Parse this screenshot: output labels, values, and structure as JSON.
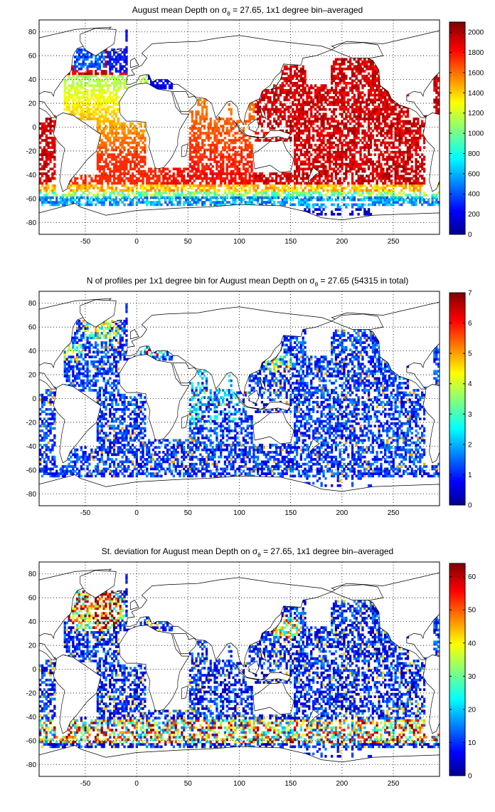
{
  "chart_data": [
    {
      "type": "heatmap",
      "title_before_symbol": "August mean Depth on ",
      "title_symbol": "σ",
      "title_subscript": "θ",
      "title_after_symbol": " = 27.65, 1x1 degree bin–averaged",
      "xlabel": "",
      "ylabel": "",
      "xlim": [
        -95,
        295
      ],
      "ylim": [
        -90,
        90
      ],
      "x_ticks": [
        "-50",
        "0",
        "50",
        "100",
        "150",
        "200",
        "250"
      ],
      "y_ticks": [
        "80",
        "60",
        "40",
        "20",
        "0",
        "-20",
        "-40",
        "-60",
        "-80"
      ],
      "grid": true,
      "colormap": "jet",
      "colorbar_range": [
        0,
        2100
      ],
      "colorbar_ticks": [
        "2000",
        "1800",
        "1600",
        "1400",
        "1200",
        "1000",
        "800",
        "600",
        "400",
        "200",
        "0"
      ],
      "pattern": "depth"
    },
    {
      "type": "heatmap",
      "title_before_symbol": "N of profiles per 1x1 degree bin for August mean Depth on ",
      "title_symbol": "σ",
      "title_subscript": "θ",
      "title_after_symbol": " = 27.65 (54315 in total)",
      "xlabel": "",
      "ylabel": "",
      "xlim": [
        -95,
        295
      ],
      "ylim": [
        -90,
        90
      ],
      "x_ticks": [
        "-50",
        "0",
        "50",
        "100",
        "150",
        "200",
        "250"
      ],
      "y_ticks": [
        "80",
        "60",
        "40",
        "20",
        "0",
        "-20",
        "-40",
        "-60",
        "-80"
      ],
      "grid": true,
      "colormap": "jet",
      "colorbar_range": [
        0,
        7
      ],
      "colorbar_ticks": [
        "7",
        "6",
        "5",
        "4",
        "3",
        "2",
        "1",
        "0"
      ],
      "pattern": "count"
    },
    {
      "type": "heatmap",
      "title_before_symbol": "St. deviation for August mean Depth on ",
      "title_symbol": "σ",
      "title_subscript": "θ",
      "title_after_symbol": " = 27.65, 1x1 degree bin–averaged",
      "xlabel": "",
      "ylabel": "",
      "xlim": [
        -95,
        295
      ],
      "ylim": [
        -90,
        90
      ],
      "x_ticks": [
        "-50",
        "0",
        "50",
        "100",
        "150",
        "200",
        "250"
      ],
      "y_ticks": [
        "80",
        "60",
        "40",
        "20",
        "0",
        "-20",
        "-40",
        "-60",
        "-80"
      ],
      "grid": true,
      "colormap": "jet",
      "colorbar_range": [
        0,
        64
      ],
      "colorbar_ticks": [
        "60",
        "50",
        "40",
        "30",
        "20",
        "10",
        "0"
      ],
      "pattern": "stddev"
    }
  ]
}
